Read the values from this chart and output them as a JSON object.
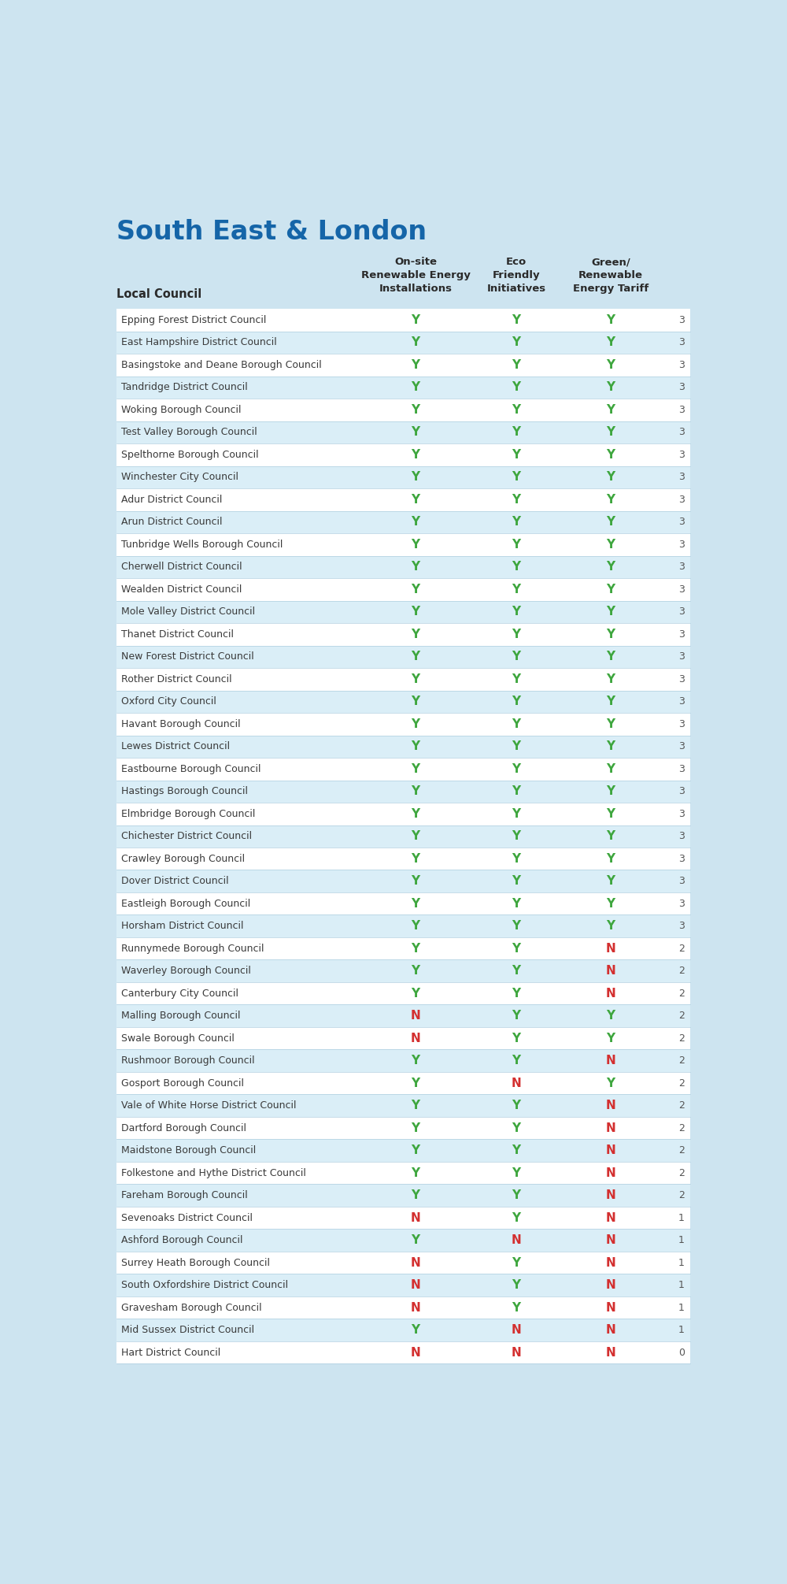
{
  "title": "South East & London",
  "title_color": "#1565a8",
  "background_color": "#cde4f0",
  "row_bg_odd": "#ffffff",
  "row_bg_even": "#daeef7",
  "col_headers": [
    "On-site\nRenewable Energy\nInstallations",
    "Eco\nFriendly\nInitiatives",
    "Green/\nRenewable\nEnergy Tariff"
  ],
  "col_header_label": "Local Council",
  "rows": [
    {
      "council": "Epping Forest District Council",
      "vals": [
        "Y",
        "Y",
        "Y"
      ],
      "score": 3
    },
    {
      "council": "East Hampshire District Council",
      "vals": [
        "Y",
        "Y",
        "Y"
      ],
      "score": 3
    },
    {
      "council": "Basingstoke and Deane Borough Council",
      "vals": [
        "Y",
        "Y",
        "Y"
      ],
      "score": 3
    },
    {
      "council": "Tandridge District Council",
      "vals": [
        "Y",
        "Y",
        "Y"
      ],
      "score": 3
    },
    {
      "council": "Woking Borough Council",
      "vals": [
        "Y",
        "Y",
        "Y"
      ],
      "score": 3
    },
    {
      "council": "Test Valley Borough Council",
      "vals": [
        "Y",
        "Y",
        "Y"
      ],
      "score": 3
    },
    {
      "council": "Spelthorne Borough Council",
      "vals": [
        "Y",
        "Y",
        "Y"
      ],
      "score": 3
    },
    {
      "council": "Winchester City Council",
      "vals": [
        "Y",
        "Y",
        "Y"
      ],
      "score": 3
    },
    {
      "council": "Adur District Council",
      "vals": [
        "Y",
        "Y",
        "Y"
      ],
      "score": 3
    },
    {
      "council": "Arun District Council",
      "vals": [
        "Y",
        "Y",
        "Y"
      ],
      "score": 3
    },
    {
      "council": "Tunbridge Wells Borough Council",
      "vals": [
        "Y",
        "Y",
        "Y"
      ],
      "score": 3
    },
    {
      "council": "Cherwell District Council",
      "vals": [
        "Y",
        "Y",
        "Y"
      ],
      "score": 3
    },
    {
      "council": "Wealden District Council",
      "vals": [
        "Y",
        "Y",
        "Y"
      ],
      "score": 3
    },
    {
      "council": "Mole Valley District Council",
      "vals": [
        "Y",
        "Y",
        "Y"
      ],
      "score": 3
    },
    {
      "council": "Thanet District Council",
      "vals": [
        "Y",
        "Y",
        "Y"
      ],
      "score": 3
    },
    {
      "council": "New Forest District Council",
      "vals": [
        "Y",
        "Y",
        "Y"
      ],
      "score": 3
    },
    {
      "council": "Rother District Council",
      "vals": [
        "Y",
        "Y",
        "Y"
      ],
      "score": 3
    },
    {
      "council": "Oxford City Council",
      "vals": [
        "Y",
        "Y",
        "Y"
      ],
      "score": 3
    },
    {
      "council": "Havant Borough Council",
      "vals": [
        "Y",
        "Y",
        "Y"
      ],
      "score": 3
    },
    {
      "council": "Lewes District Council",
      "vals": [
        "Y",
        "Y",
        "Y"
      ],
      "score": 3
    },
    {
      "council": "Eastbourne Borough Council",
      "vals": [
        "Y",
        "Y",
        "Y"
      ],
      "score": 3
    },
    {
      "council": "Hastings Borough Council",
      "vals": [
        "Y",
        "Y",
        "Y"
      ],
      "score": 3
    },
    {
      "council": "Elmbridge Borough Council",
      "vals": [
        "Y",
        "Y",
        "Y"
      ],
      "score": 3
    },
    {
      "council": "Chichester District Council",
      "vals": [
        "Y",
        "Y",
        "Y"
      ],
      "score": 3
    },
    {
      "council": "Crawley Borough Council",
      "vals": [
        "Y",
        "Y",
        "Y"
      ],
      "score": 3
    },
    {
      "council": "Dover District Council",
      "vals": [
        "Y",
        "Y",
        "Y"
      ],
      "score": 3
    },
    {
      "council": "Eastleigh Borough Council",
      "vals": [
        "Y",
        "Y",
        "Y"
      ],
      "score": 3
    },
    {
      "council": "Horsham District Council",
      "vals": [
        "Y",
        "Y",
        "Y"
      ],
      "score": 3
    },
    {
      "council": "Runnymede Borough Council",
      "vals": [
        "Y",
        "Y",
        "N"
      ],
      "score": 2
    },
    {
      "council": "Waverley Borough Council",
      "vals": [
        "Y",
        "Y",
        "N"
      ],
      "score": 2
    },
    {
      "council": "Canterbury City Council",
      "vals": [
        "Y",
        "Y",
        "N"
      ],
      "score": 2
    },
    {
      "council": "Malling Borough Council",
      "vals": [
        "N",
        "Y",
        "Y"
      ],
      "score": 2
    },
    {
      "council": "Swale Borough Council",
      "vals": [
        "N",
        "Y",
        "Y"
      ],
      "score": 2
    },
    {
      "council": "Rushmoor Borough Council",
      "vals": [
        "Y",
        "Y",
        "N"
      ],
      "score": 2
    },
    {
      "council": "Gosport Borough Council",
      "vals": [
        "Y",
        "N",
        "Y"
      ],
      "score": 2
    },
    {
      "council": "Vale of White Horse District Council",
      "vals": [
        "Y",
        "Y",
        "N"
      ],
      "score": 2
    },
    {
      "council": "Dartford Borough Council",
      "vals": [
        "Y",
        "Y",
        "N"
      ],
      "score": 2
    },
    {
      "council": "Maidstone Borough Council",
      "vals": [
        "Y",
        "Y",
        "N"
      ],
      "score": 2
    },
    {
      "council": "Folkestone and Hythe District Council",
      "vals": [
        "Y",
        "Y",
        "N"
      ],
      "score": 2
    },
    {
      "council": "Fareham Borough Council",
      "vals": [
        "Y",
        "Y",
        "N"
      ],
      "score": 2
    },
    {
      "council": "Sevenoaks District Council",
      "vals": [
        "N",
        "Y",
        "N"
      ],
      "score": 1
    },
    {
      "council": "Ashford Borough Council",
      "vals": [
        "Y",
        "N",
        "N"
      ],
      "score": 1
    },
    {
      "council": "Surrey Heath Borough Council",
      "vals": [
        "N",
        "Y",
        "N"
      ],
      "score": 1
    },
    {
      "council": "South Oxfordshire District Council",
      "vals": [
        "N",
        "Y",
        "N"
      ],
      "score": 1
    },
    {
      "council": "Gravesham Borough Council",
      "vals": [
        "N",
        "Y",
        "N"
      ],
      "score": 1
    },
    {
      "council": "Mid Sussex District Council",
      "vals": [
        "Y",
        "N",
        "N"
      ],
      "score": 1
    },
    {
      "council": "Hart District Council",
      "vals": [
        "N",
        "N",
        "N"
      ],
      "score": 0
    }
  ],
  "Y_color": "#3ea63e",
  "N_color": "#d32f2f",
  "score_color": "#555555",
  "council_color": "#3a3a3a",
  "header_color": "#2a2a2a",
  "separator_color": "#b0cfe0"
}
